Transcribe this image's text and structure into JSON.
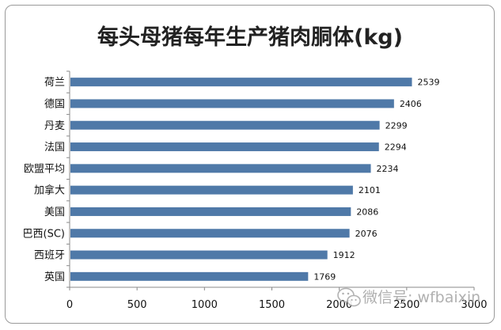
{
  "chart_data": {
    "type": "bar",
    "orientation": "horizontal",
    "title": "每头母猪每年生产猪肉胴体(kg)",
    "categories": [
      "荷兰",
      "德国",
      "丹麦",
      "法国",
      "欧盟平均",
      "加拿大",
      "美国",
      "巴西(SC)",
      "西班牙",
      "英国"
    ],
    "values": [
      2539,
      2406,
      2299,
      2294,
      2234,
      2101,
      2086,
      2076,
      1912,
      1769
    ],
    "xlim": [
      0,
      3000
    ],
    "xticks": [
      0,
      500,
      1000,
      1500,
      2000,
      2500,
      3000
    ],
    "grid": false,
    "legend": "none",
    "bar_color": "#4f79a8"
  },
  "watermark": {
    "text": "微信号: wfbaixin",
    "icon": "wechat-icon"
  }
}
